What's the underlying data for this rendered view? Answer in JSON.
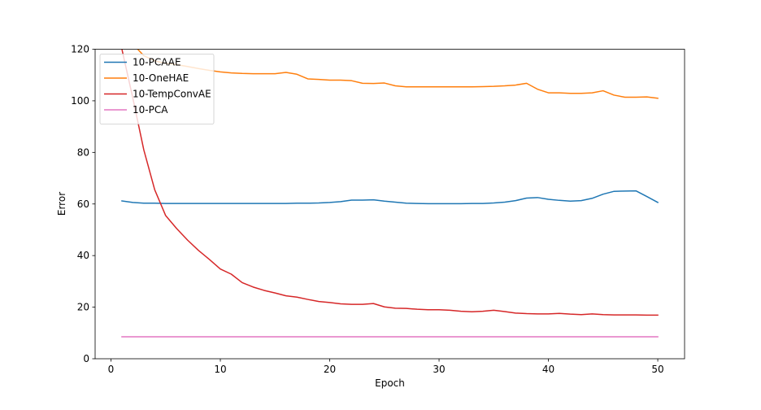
{
  "chart_data": {
    "type": "line",
    "title": "",
    "xlabel": "Epoch",
    "ylabel": "Error",
    "xlim": [
      -1.45,
      52.45
    ],
    "ylim": [
      0,
      120
    ],
    "xticks": [
      0,
      10,
      20,
      30,
      40,
      50
    ],
    "yticks": [
      0,
      20,
      40,
      60,
      80,
      100,
      120
    ],
    "grid": false,
    "legend_position": "upper-left",
    "x": [
      1,
      2,
      3,
      4,
      5,
      6,
      7,
      8,
      9,
      10,
      11,
      12,
      13,
      14,
      15,
      16,
      17,
      18,
      19,
      20,
      21,
      22,
      23,
      24,
      25,
      26,
      27,
      28,
      29,
      30,
      31,
      32,
      33,
      34,
      35,
      36,
      37,
      38,
      39,
      40,
      41,
      42,
      43,
      44,
      45,
      46,
      47,
      48,
      49,
      50
    ],
    "series": [
      {
        "name": "10-PCAAE",
        "color": "#1f77b4",
        "values": [
          61.2,
          60.6,
          60.3,
          60.3,
          60.2,
          60.2,
          60.2,
          60.2,
          60.2,
          60.2,
          60.2,
          60.2,
          60.2,
          60.2,
          60.2,
          60.2,
          60.3,
          60.3,
          60.4,
          60.6,
          60.9,
          61.5,
          61.5,
          61.6,
          61.1,
          60.7,
          60.3,
          60.2,
          60.1,
          60.1,
          60.1,
          60.1,
          60.2,
          60.2,
          60.4,
          60.7,
          61.3,
          62.3,
          62.5,
          61.8,
          61.4,
          61.1,
          61.3,
          62.2,
          63.8,
          64.9,
          65.0,
          65.1,
          62.9,
          60.6
        ]
      },
      {
        "name": "10-OneHAE",
        "color": "#ff7f0e",
        "values": [
          128,
          122,
          117.5,
          115.5,
          114.5,
          114,
          113.3,
          112.5,
          111.8,
          111.2,
          110.8,
          110.6,
          110.5,
          110.5,
          110.5,
          111,
          110.3,
          108.5,
          108.3,
          108,
          108,
          107.8,
          106.8,
          106.7,
          106.9,
          105.8,
          105.4,
          105.4,
          105.4,
          105.4,
          105.4,
          105.4,
          105.4,
          105.5,
          105.6,
          105.8,
          106.1,
          106.8,
          104.5,
          103.1,
          103.1,
          102.9,
          102.9,
          103.1,
          103.9,
          102.2,
          101.4,
          101.4,
          101.5,
          101.0
        ]
      },
      {
        "name": "10-TempConvAE",
        "color": "#d62728",
        "values": [
          120,
          101,
          81,
          65.5,
          55.5,
          50.5,
          46,
          42,
          38.5,
          34.8,
          32.8,
          29.5,
          27.8,
          26.5,
          25.5,
          24.4,
          23.9,
          23,
          22.2,
          21.8,
          21.3,
          21.1,
          21.1,
          21.4,
          20.1,
          19.6,
          19.5,
          19.2,
          19.0,
          19.0,
          18.8,
          18.4,
          18.2,
          18.4,
          18.8,
          18.3,
          17.7,
          17.5,
          17.4,
          17.4,
          17.6,
          17.3,
          17.1,
          17.4,
          17.1,
          17.0,
          17.0,
          17.0,
          16.9,
          16.9
        ]
      },
      {
        "name": "10-PCA",
        "color": "#e377c2",
        "values": [
          8.5,
          8.5,
          8.5,
          8.5,
          8.5,
          8.5,
          8.5,
          8.5,
          8.5,
          8.5,
          8.5,
          8.5,
          8.5,
          8.5,
          8.5,
          8.5,
          8.5,
          8.5,
          8.5,
          8.5,
          8.5,
          8.5,
          8.5,
          8.5,
          8.5,
          8.5,
          8.5,
          8.5,
          8.5,
          8.5,
          8.5,
          8.5,
          8.5,
          8.5,
          8.5,
          8.5,
          8.5,
          8.5,
          8.5,
          8.5,
          8.5,
          8.5,
          8.5,
          8.5,
          8.5,
          8.5,
          8.5,
          8.5,
          8.5,
          8.5
        ]
      }
    ]
  }
}
